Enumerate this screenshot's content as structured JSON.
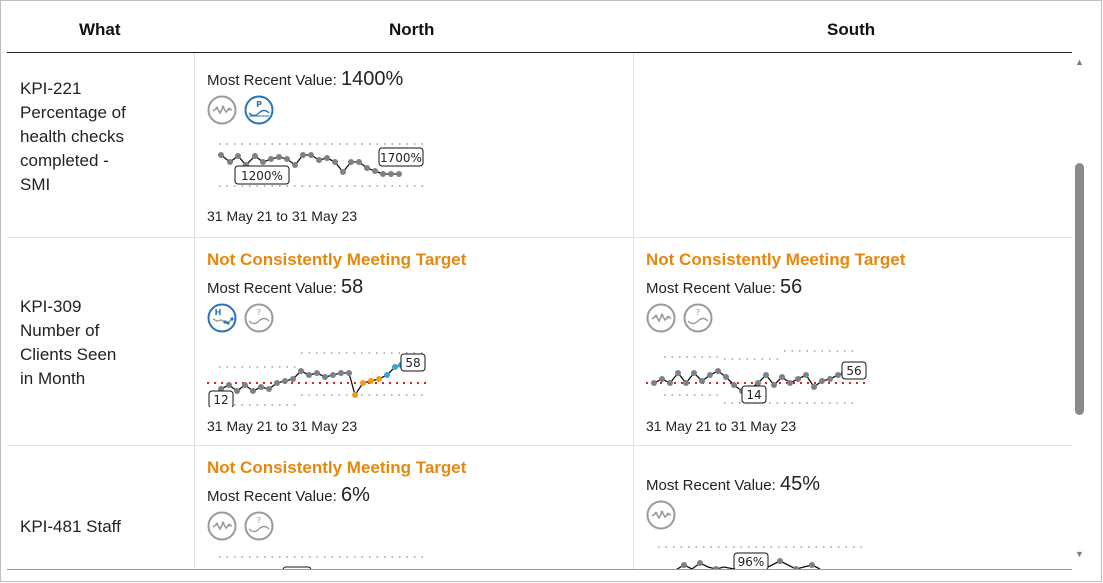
{
  "table": {
    "headers": {
      "what": "What",
      "north": "North",
      "south": "South"
    },
    "rows": [
      {
        "what": "KPI-221 Percentage of health checks completed - SMI",
        "north": {
          "status": "",
          "mrv_label": "Most Recent Value:",
          "mrv_value": "1400%",
          "label_low": "1200%",
          "label_high": "1700%",
          "range": "31 May 21 to 31 May 23"
        }
      },
      {
        "what": "KPI-309 Number of Clients Seen in Month",
        "north": {
          "status": "Not Consistently Meeting Target",
          "mrv_label": "Most Recent Value:",
          "mrv_value": "58",
          "label_low": "12",
          "label_high": "58",
          "range": "31 May 21 to 31 May 23"
        },
        "south": {
          "status": "Not Consistently Meeting Target",
          "mrv_label": "Most Recent Value:",
          "mrv_value": "56",
          "label_low": "14",
          "label_high": "56",
          "range": "31 May 21 to 31 May 23"
        }
      },
      {
        "what": "KPI-481 Staff",
        "north": {
          "status": "Not Consistently Meeting Target",
          "mrv_label": "Most Recent Value:",
          "mrv_value": "6%"
        },
        "south": {
          "mrv_label": "Most Recent Value:",
          "mrv_value": "45%",
          "label_high": "96%"
        }
      }
    ]
  },
  "icons": {
    "variation_common": "common-cause-variation-icon",
    "pass_target": "assurance-pass-icon",
    "high_variation": "special-cause-high-icon",
    "unknown_assurance": "assurance-unknown-icon"
  },
  "colors": {
    "status": "#e8870e",
    "icon_blue": "#2a73b8",
    "icon_grey": "#9a9a9a",
    "target_line": "#e02020",
    "special_orange": "#f39a14",
    "special_blue": "#3aa0d8"
  }
}
